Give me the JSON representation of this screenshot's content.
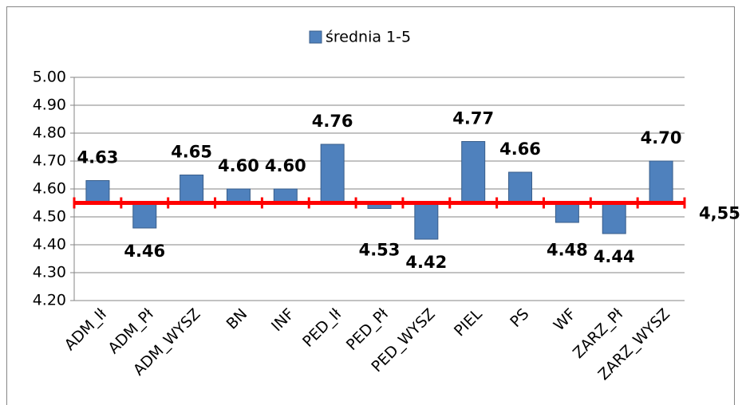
{
  "chart_data": {
    "type": "bar",
    "legend": "średnia 1-5",
    "categories": [
      "ADM_Ił",
      "ADM_Pł",
      "ADM_WYSZ",
      "BN",
      "INF",
      "PED_Ił",
      "PED_Pł",
      "PED_WYSZ",
      "PIEL",
      "PS",
      "WF",
      "ZARZ_Pł",
      "ZARZ_WYSZ"
    ],
    "series": [
      {
        "name": "średnia 1-5",
        "color": "#4f81bd",
        "values": [
          4.63,
          4.46,
          4.65,
          4.6,
          4.6,
          4.76,
          4.53,
          4.42,
          4.77,
          4.66,
          4.48,
          4.44,
          4.7
        ],
        "value_labels": [
          "4.63",
          "4.46",
          "4.65",
          "4.60",
          "4.60",
          "4.76",
          "4.53",
          "4.42",
          "4.77",
          "4.66",
          "4.48",
          "4.44",
          "4.70"
        ]
      }
    ],
    "baseline": {
      "value": 4.55,
      "label": "4,55"
    },
    "baseline_color": "#ff0000",
    "ylim": [
      4.2,
      5.0
    ],
    "yticks": [
      {
        "value": 4.2,
        "label": "4.20"
      },
      {
        "value": 4.3,
        "label": "4.30"
      },
      {
        "value": 4.4,
        "label": "4.40"
      },
      {
        "value": 4.5,
        "label": "4.50"
      },
      {
        "value": 4.6,
        "label": "4.60"
      },
      {
        "value": 4.7,
        "label": "4.70"
      },
      {
        "value": 4.8,
        "label": "4.80"
      },
      {
        "value": 4.9,
        "label": "4.90"
      },
      {
        "value": 5.0,
        "label": "5.00"
      }
    ],
    "grid": true
  }
}
